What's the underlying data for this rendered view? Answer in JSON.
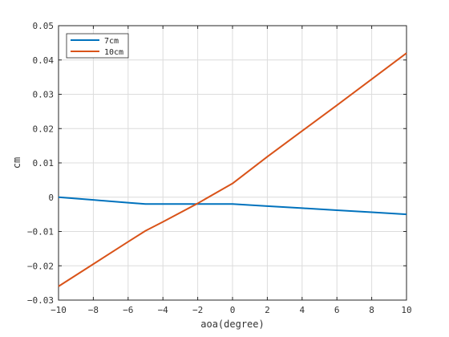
{
  "chart_data": {
    "type": "line",
    "xlabel": "aoa(degree)",
    "ylabel": "cm",
    "xlim": [
      -10,
      10
    ],
    "ylim": [
      -0.03,
      0.05
    ],
    "x_ticks": [
      -10,
      -8,
      -6,
      -4,
      -2,
      0,
      2,
      4,
      6,
      8,
      10
    ],
    "y_ticks": [
      -0.03,
      -0.02,
      -0.01,
      0,
      0.01,
      0.02,
      0.03,
      0.04,
      0.05
    ],
    "x_tick_labels": [
      "−10",
      "−8",
      "−6",
      "−4",
      "−2",
      "0",
      "2",
      "4",
      "6",
      "8",
      "10"
    ],
    "y_tick_labels": [
      "−0.03",
      "−0.02",
      "−0.01",
      "0",
      "0.01",
      "0.02",
      "0.03",
      "0.04",
      "0.05"
    ],
    "grid": true,
    "legend_position": "top-left",
    "series": [
      {
        "name": "7cm",
        "color": "#0072BD",
        "x": [
          -10,
          -8,
          -6,
          -5,
          -4,
          -2,
          0,
          2,
          4,
          6,
          8,
          10
        ],
        "y": [
          0,
          -0.0008,
          -0.0016,
          -0.002,
          -0.002,
          -0.002,
          -0.002,
          -0.0026,
          -0.0032,
          -0.0038,
          -0.0044,
          -0.005
        ]
      },
      {
        "name": "10cm",
        "color": "#D95319",
        "x": [
          -10,
          -8,
          -6,
          -5,
          -4,
          -2,
          0,
          2,
          4,
          6,
          8,
          10
        ],
        "y": [
          -0.026,
          -0.0195,
          -0.013,
          -0.0098,
          -0.0072,
          -0.0018,
          0.004,
          0.0118,
          0.0193,
          0.0268,
          0.0344,
          0.042
        ]
      }
    ]
  }
}
